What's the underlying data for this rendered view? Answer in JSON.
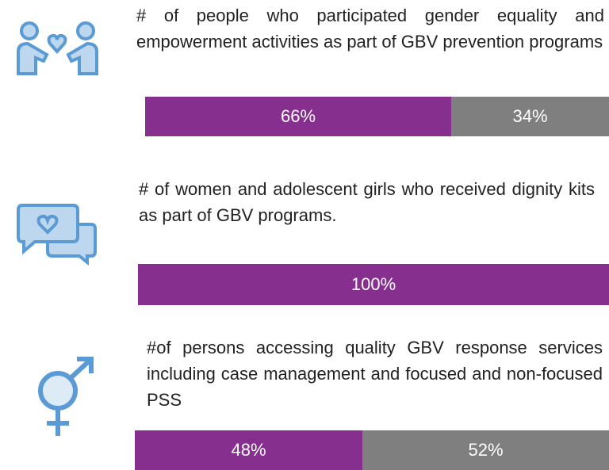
{
  "chart_data": [
    {
      "type": "bar",
      "orientation": "horizontal",
      "stacked": true,
      "title": "# of people who participated gender equality and empowerment activities as part of GBV prevention programs",
      "xlim": [
        0,
        100
      ],
      "series": [
        {
          "color": "#872f8f",
          "values": [
            66
          ],
          "value_labels": [
            "66%"
          ]
        },
        {
          "color": "#7f7f7f",
          "values": [
            34
          ],
          "value_labels": [
            "34%"
          ]
        }
      ]
    },
    {
      "type": "bar",
      "orientation": "horizontal",
      "stacked": true,
      "title": "# of women and adolescent girls who received dignity kits as part of GBV programs.",
      "xlim": [
        0,
        100
      ],
      "series": [
        {
          "color": "#872f8f",
          "values": [
            100
          ],
          "value_labels": [
            "100%"
          ]
        }
      ]
    },
    {
      "type": "bar",
      "orientation": "horizontal",
      "stacked": true,
      "title": "#of persons accessing quality GBV response services including case management and focused and non-focused PSS",
      "xlim": [
        0,
        100
      ],
      "series": [
        {
          "color": "#872f8f",
          "values": [
            48
          ],
          "value_labels": [
            "48%"
          ]
        },
        {
          "color": "#7f7f7f",
          "values": [
            52
          ],
          "value_labels": [
            "52%"
          ]
        }
      ]
    }
  ]
}
